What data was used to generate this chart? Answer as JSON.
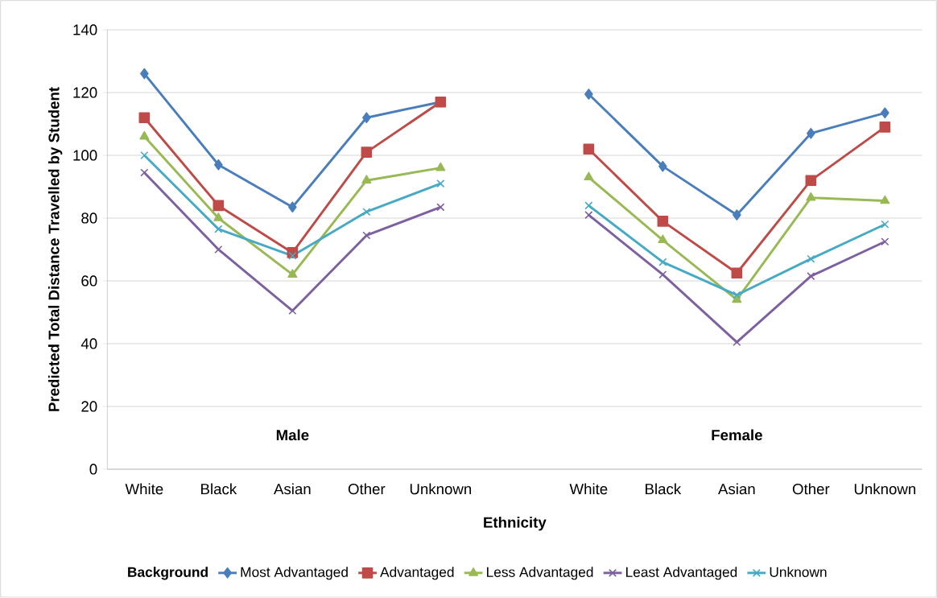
{
  "chart_data": {
    "type": "line",
    "xlabel": "Ethnicity",
    "ylabel": "Predicted Total Distance Travelled by Student",
    "legend_title": "Background",
    "categories": [
      "White",
      "Black",
      "Asian",
      "Other",
      "Unknown",
      null,
      "White",
      "Black",
      "Asian",
      "Other",
      "Unknown"
    ],
    "series": [
      {
        "name": "Most Advantaged",
        "color": "#4a7ebb",
        "marker": "diamond",
        "values": [
          126,
          97,
          83.5,
          112,
          117,
          null,
          119.5,
          96.5,
          81,
          107,
          113.5
        ]
      },
      {
        "name": "Advantaged",
        "color": "#be4b48",
        "marker": "square",
        "values": [
          112,
          84,
          69,
          101,
          117,
          null,
          102,
          79,
          62.5,
          92,
          109
        ]
      },
      {
        "name": "Less Advantaged",
        "color": "#98b954",
        "marker": "triangle",
        "values": [
          106,
          80,
          62,
          92,
          96,
          null,
          93,
          73,
          54,
          86.5,
          85.5
        ]
      },
      {
        "name": "Least Advantaged",
        "color": "#7d60a0",
        "marker": "cross",
        "values": [
          94.5,
          70,
          50.5,
          74.5,
          83.5,
          null,
          81,
          62,
          40.5,
          61.5,
          72.5
        ]
      },
      {
        "name": "Unknown",
        "color": "#46aac5",
        "marker": "cross",
        "values": [
          100,
          76.5,
          68,
          82,
          91,
          null,
          84,
          66,
          55.5,
          67,
          78
        ]
      }
    ],
    "ylim": [
      0,
      140
    ],
    "yticks": [
      0,
      20,
      40,
      60,
      80,
      100,
      120,
      140
    ],
    "grid": "y",
    "legend": "bottom",
    "annotations": [
      "Male",
      "Female"
    ]
  }
}
